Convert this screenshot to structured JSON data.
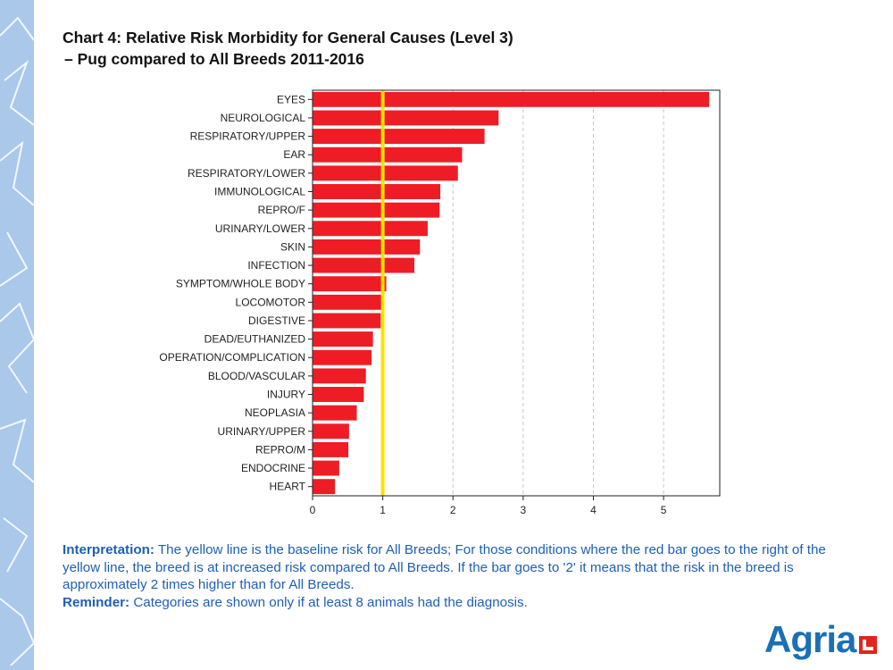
{
  "title": {
    "line1": "Chart 4: Relative Risk Morbidity for General Causes (Level 3)",
    "line2": "–  Pug compared to All Breeds 2011-2016"
  },
  "colors": {
    "bar": "#ee1c25",
    "baseline": "#ffe000",
    "accent_text": "#1f5fb4",
    "brand_blue": "#1b6fb5",
    "brand_red": "#e1251b",
    "strip": "#a9c8ea"
  },
  "chart_data": {
    "type": "bar",
    "orientation": "horizontal",
    "categories": [
      "EYES",
      "NEUROLOGICAL",
      "RESPIRATORY/UPPER",
      "EAR",
      "RESPIRATORY/LOWER",
      "IMMUNOLOGICAL",
      "REPRO/F",
      "URINARY/LOWER",
      "SKIN",
      "INFECTION",
      "SYMPTOM/WHOLE BODY",
      "LOCOMOTOR",
      "DIGESTIVE",
      "DEAD/EUTHANIZED",
      "OPERATION/COMPLICATION",
      "BLOOD/VASCULAR",
      "INJURY",
      "NEOPLASIA",
      "URINARY/UPPER",
      "REPRO/M",
      "ENDOCRINE",
      "HEART"
    ],
    "values": [
      5.65,
      2.65,
      2.45,
      2.13,
      2.07,
      1.82,
      1.81,
      1.64,
      1.53,
      1.45,
      1.05,
      1.0,
      0.97,
      0.86,
      0.84,
      0.76,
      0.73,
      0.63,
      0.52,
      0.51,
      0.38,
      0.32
    ],
    "xticks": [
      0,
      1,
      2,
      3,
      4,
      5
    ],
    "xlim": [
      0,
      5.8
    ],
    "baseline": 1,
    "grid": "vertical dashed",
    "title": "",
    "xlabel": "",
    "ylabel": ""
  },
  "notes": {
    "interpretation_label": "Interpretation:",
    "interpretation_text": " The yellow line is the baseline risk for All Breeds; For those conditions where the red bar goes to the right of the yellow line, the breed is at increased risk compared to All Breeds. If the bar goes to '2' it means that the risk in the breed is approximately 2 times higher than for All Breeds.",
    "reminder_label": "Reminder:",
    "reminder_text": " Categories are shown only if at least 8 animals had the diagnosis."
  },
  "logo": {
    "text": "Agria"
  }
}
